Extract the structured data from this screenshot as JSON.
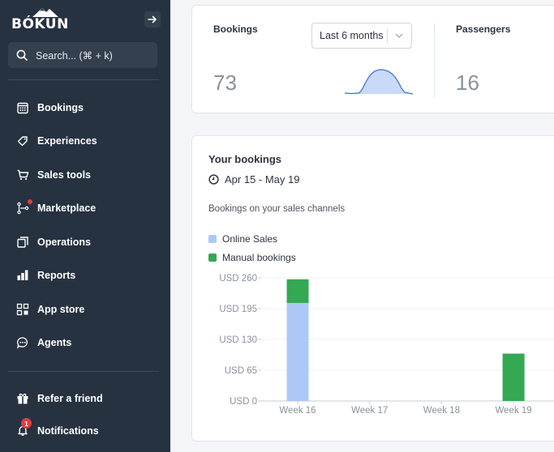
{
  "sidebar": {
    "logo_text": "BÓKUN",
    "search_placeholder": "Search... (⌘ + k)",
    "items": [
      {
        "label": "Bookings",
        "icon": "calendar-icon"
      },
      {
        "label": "Experiences",
        "icon": "tag-icon"
      },
      {
        "label": "Sales tools",
        "icon": "cart-icon"
      },
      {
        "label": "Marketplace",
        "icon": "network-icon",
        "has_dot": true
      },
      {
        "label": "Operations",
        "icon": "copy-icon"
      },
      {
        "label": "Reports",
        "icon": "bar-chart-icon"
      },
      {
        "label": "App store",
        "icon": "grid-icon"
      },
      {
        "label": "Agents",
        "icon": "chat-icon"
      }
    ],
    "footer_items": [
      {
        "label": "Refer a friend",
        "icon": "gift-icon"
      },
      {
        "label": "Notifications",
        "icon": "bell-icon",
        "badge": "1"
      }
    ]
  },
  "stats": {
    "bookings_label": "Bookings",
    "bookings_value": "73",
    "period_select": "Last 6 months",
    "passengers_label": "Passengers",
    "passengers_value": "16"
  },
  "your_bookings": {
    "title": "Your bookings",
    "date_range": "Apr 15 - May 19",
    "subtitle": "Bookings on your sales channels",
    "legend": [
      {
        "label": "Online Sales",
        "color": "#adc8f6"
      },
      {
        "label": "Manual bookings",
        "color": "#34a853"
      }
    ]
  },
  "chart_data": {
    "type": "bar",
    "stacked": true,
    "categories": [
      "Week 16",
      "Week 17",
      "Week 18",
      "Week 19"
    ],
    "series": [
      {
        "name": "Online Sales",
        "color": "#adc8f6",
        "values": [
          207,
          0,
          0,
          0
        ]
      },
      {
        "name": "Manual bookings",
        "color": "#34a853",
        "values": [
          50,
          0,
          0,
          100
        ]
      }
    ],
    "y_ticks": [
      "USD 0",
      "USD 65",
      "USD 130",
      "USD 195",
      "USD 260"
    ],
    "ylim": [
      0,
      260
    ],
    "grid": true
  },
  "colors": {
    "sidebar_bg": "#263240",
    "accent_red": "#e23b3b"
  }
}
